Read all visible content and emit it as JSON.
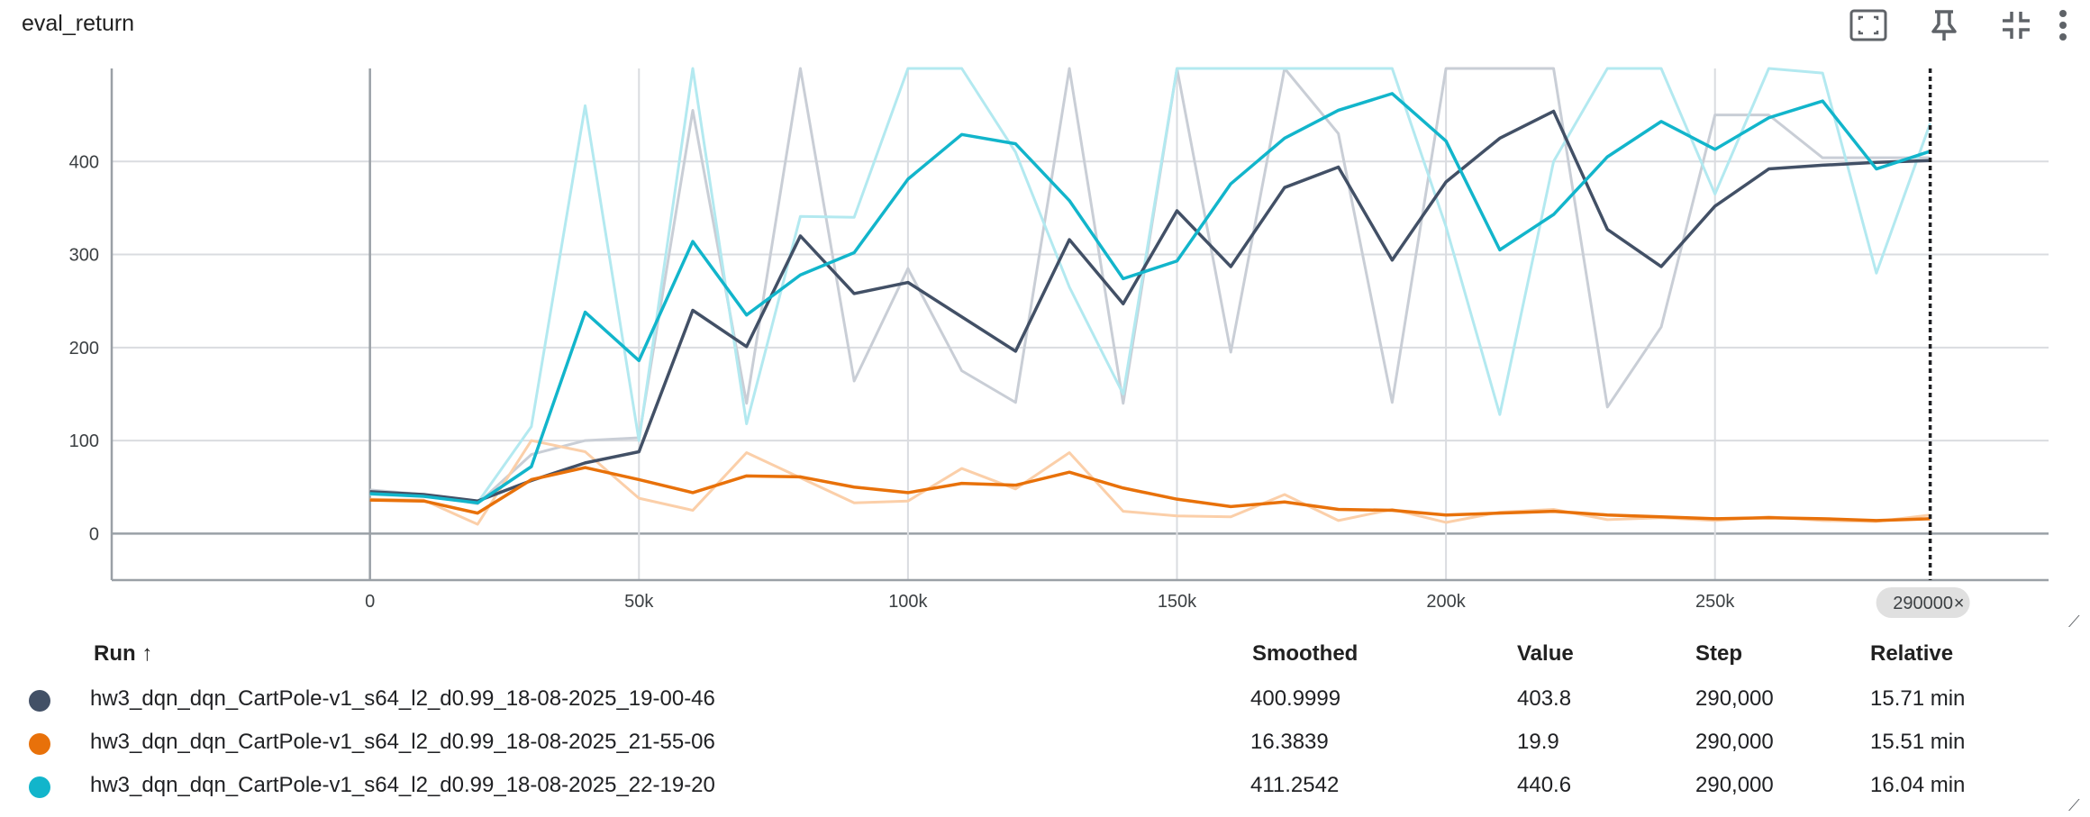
{
  "header": {
    "title": "eval_return"
  },
  "toolbar": {
    "icons": [
      "fit-to-screen-icon",
      "pin-icon",
      "collapse-icon",
      "more-vert-icon"
    ]
  },
  "chart_data": {
    "type": "line",
    "title": "eval_return",
    "xlabel": "",
    "ylabel": "",
    "xlim": [
      -48000,
      312000
    ],
    "ylim": [
      -50,
      500
    ],
    "x_ticks": [
      0,
      50000,
      100000,
      150000,
      200000,
      250000
    ],
    "x_tick_labels": [
      "0",
      "50k",
      "100k",
      "150k",
      "200k",
      "250k"
    ],
    "y_ticks": [
      0,
      100,
      200,
      300,
      400
    ],
    "y_tick_labels": [
      "0",
      "100",
      "200",
      "300",
      "400"
    ],
    "cursor": {
      "step": 290000,
      "label": "290000",
      "close_glyph": "×"
    },
    "x": [
      0,
      10000,
      20000,
      30000,
      40000,
      50000,
      60000,
      70000,
      80000,
      90000,
      100000,
      110000,
      120000,
      130000,
      140000,
      150000,
      160000,
      170000,
      180000,
      190000,
      200000,
      210000,
      220000,
      230000,
      240000,
      250000,
      260000,
      270000,
      280000,
      290000
    ],
    "series": [
      {
        "name": "hw3_dqn_dqn_CartPole-v1_s64_l2_d0.99_18-08-2025_19-00-46",
        "color": "#425066",
        "raw_color": "#c9ced6",
        "raw": [
          47,
          42,
          32,
          85,
          100,
          103,
          455,
          140,
          500,
          164,
          285,
          175,
          141,
          500,
          140,
          500,
          195,
          500,
          430,
          141,
          500,
          500,
          500,
          136,
          222,
          450,
          450,
          404,
          404,
          404
        ],
        "smoothed": [
          45,
          42,
          35,
          57,
          76,
          88,
          240,
          201,
          320,
          258,
          270,
          233,
          196,
          316,
          247,
          347,
          287,
          372,
          394,
          294,
          378,
          425,
          454,
          327,
          287,
          352,
          392,
          396,
          399,
          401
        ]
      },
      {
        "name": "hw3_dqn_dqn_CartPole-v1_s64_l2_d0.99_18-08-2025_21-55-06",
        "color": "#e8710a",
        "raw_color": "#fbcfa9",
        "raw": [
          37,
          36,
          10,
          100,
          88,
          38,
          25,
          87,
          60,
          33,
          35,
          70,
          48,
          87,
          24,
          19,
          18,
          42,
          14,
          26,
          12,
          23,
          26,
          15,
          17,
          14,
          18,
          14,
          13,
          20
        ],
        "smoothed": [
          36,
          35,
          22,
          58,
          71,
          58,
          44,
          62,
          61,
          50,
          44,
          54,
          52,
          66,
          49,
          37,
          29,
          34,
          26,
          25,
          20,
          22,
          24,
          20,
          18,
          16,
          17,
          16,
          14,
          16
        ]
      },
      {
        "name": "hw3_dqn_dqn_CartPole-v1_s64_l2_d0.99_18-08-2025_22-19-20",
        "color": "#12b5cb",
        "raw_color": "#b3e9f0",
        "raw": [
          42,
          40,
          33,
          115,
          460,
          100,
          500,
          118,
          341,
          340,
          500,
          500,
          410,
          265,
          150,
          500,
          500,
          500,
          500,
          500,
          330,
          128,
          400,
          500,
          500,
          365,
          500,
          495,
          280,
          441
        ],
        "smoothed": [
          43,
          40,
          33,
          72,
          238,
          186,
          314,
          235,
          278,
          302,
          381,
          429,
          419,
          358,
          274,
          293,
          376,
          425,
          455,
          473,
          422,
          305,
          343,
          405,
          443,
          413,
          447,
          465,
          392,
          411
        ]
      }
    ]
  },
  "table": {
    "headers": {
      "run": "Run ↑",
      "smoothed": "Smoothed",
      "value": "Value",
      "step": "Step",
      "relative": "Relative"
    },
    "rows": [
      {
        "color": "#425066",
        "run": "hw3_dqn_dqn_CartPole-v1_s64_l2_d0.99_18-08-2025_19-00-46",
        "smoothed": "400.9999",
        "value": "403.8",
        "step": "290,000",
        "relative": "15.71 min"
      },
      {
        "color": "#e8710a",
        "run": "hw3_dqn_dqn_CartPole-v1_s64_l2_d0.99_18-08-2025_21-55-06",
        "smoothed": "16.3839",
        "value": "19.9",
        "step": "290,000",
        "relative": "15.51 min"
      },
      {
        "color": "#12b5cb",
        "run": "hw3_dqn_dqn_CartPole-v1_s64_l2_d0.99_18-08-2025_22-19-20",
        "smoothed": "411.2542",
        "value": "440.6",
        "step": "290,000",
        "relative": "16.04 min"
      }
    ]
  }
}
